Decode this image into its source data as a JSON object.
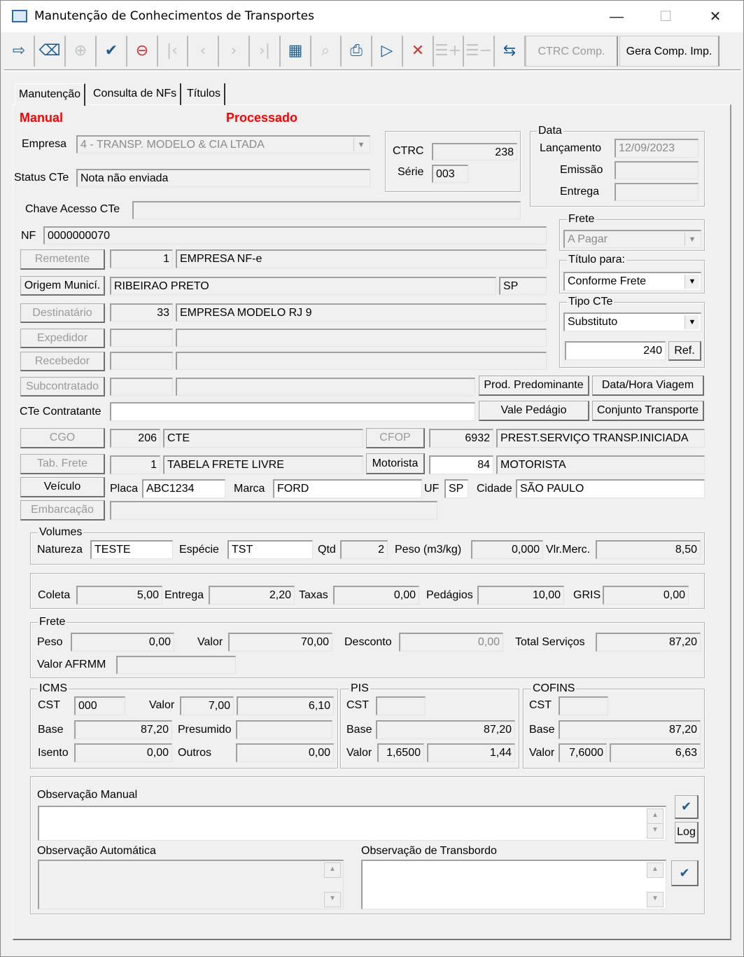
{
  "window": {
    "title": "Manutenção de Conhecimentos de Transportes",
    "minimize": "—",
    "maximize": "☐",
    "close": "✕"
  },
  "toolbar": {
    "icons": [
      {
        "name": "exit-icon",
        "glyph": "⇨",
        "enabled": true
      },
      {
        "name": "eraser-icon",
        "glyph": "⌫",
        "enabled": true
      },
      {
        "name": "folder-add-icon",
        "glyph": "⊕",
        "enabled": false
      },
      {
        "name": "folder-check-icon",
        "glyph": "✔",
        "enabled": true
      },
      {
        "name": "folder-delete-icon",
        "glyph": "⊖",
        "enabled": true
      },
      {
        "name": "first-record-icon",
        "glyph": "|‹",
        "enabled": false
      },
      {
        "name": "previous-record-icon",
        "glyph": "‹",
        "enabled": false
      },
      {
        "name": "next-record-icon",
        "glyph": "›",
        "enabled": false
      },
      {
        "name": "last-record-icon",
        "glyph": "›|",
        "enabled": false
      },
      {
        "name": "grid-icon",
        "glyph": "▦",
        "enabled": true
      },
      {
        "name": "search-icon",
        "glyph": "⌕",
        "enabled": false
      },
      {
        "name": "print-icon",
        "glyph": "⎙",
        "enabled": true
      },
      {
        "name": "play-icon",
        "glyph": "▷",
        "enabled": true
      },
      {
        "name": "cancel-icon",
        "glyph": "✕",
        "enabled": true
      },
      {
        "name": "add-row-icon",
        "glyph": "☰+",
        "enabled": false
      },
      {
        "name": "remove-row-icon",
        "glyph": "☰−",
        "enabled": false
      },
      {
        "name": "transfer-icon",
        "glyph": "⇆",
        "enabled": true
      }
    ],
    "ctrc_comp": "CTRC Comp.",
    "gera_comp_imp": "Gera Comp. Imp."
  },
  "tabs": [
    "Manutenção",
    "Consulta de NFs",
    "Títulos"
  ],
  "status": {
    "manual": "Manual",
    "processado": "Processado"
  },
  "header": {
    "empresa_label": "Empresa",
    "empresa": "4 - TRANSP. MODELO & CIA LTADA",
    "status_label": "Status CTe",
    "status": "Nota não enviada",
    "ctrc_label": "CTRC",
    "ctrc": "238",
    "serie_label": "Série",
    "serie": "003",
    "data_title": "Data",
    "lancamento_label": "Lançamento",
    "lancamento": "12/09/2023",
    "emissao_label": "Emissão",
    "emissao": "",
    "entrega_label": "Entrega",
    "entrega": "",
    "chave_label": "Chave Acesso CTe",
    "chave": "",
    "nf_label": "NF",
    "nf": "0000000070"
  },
  "side": {
    "frete_title": "Frete",
    "frete": "A Pagar",
    "titulo_title": "Título para:",
    "titulo": "Conforme Frete",
    "tipo_title": "Tipo CTe",
    "tipo": "Substituto",
    "ref_value": "240",
    "ref_button": "Ref."
  },
  "parties": {
    "remetente": "Remetente",
    "remetente_cod": "1",
    "remetente_nome": "EMPRESA NF-e",
    "origem": "Origem Municí.",
    "origem_cidade": "RIBEIRAO PRETO",
    "origem_uf": "SP",
    "destinatario": "Destinatário",
    "destinatario_cod": "33",
    "destinatario_nome": "EMPRESA MODELO RJ 9",
    "expedidor": "Expedidor",
    "recebedor": "Recebedor",
    "subcontratado": "Subcontratado",
    "prod_predominante": "Prod. Predominante",
    "data_hora_viagem": "Data/Hora Viagem",
    "cte_contratante_label": "CTe Contratante",
    "cte_contratante": "",
    "vale_pedagio": "Vale Pedágio",
    "conjunto_transporte": "Conjunto Transporte",
    "cgo": "CGO",
    "cgo_cod": "206",
    "cgo_desc": "CTE",
    "cfop": "CFOP",
    "cfop_cod": "6932",
    "cfop_desc": "PREST.SERVIÇO TRANSP.INICIADA",
    "tab_frete": "Tab. Frete",
    "tab_frete_cod": "1",
    "tab_frete_desc": "TABELA FRETE LIVRE",
    "motorista": "Motorista",
    "motorista_cod": "84",
    "motorista_nome": "MOTORISTA",
    "veiculo": "Veículo",
    "placa_label": "Placa",
    "placa": "ABC1234",
    "marca_label": "Marca",
    "marca": "FORD",
    "uf_label": "UF",
    "uf": "SP",
    "cidade_label": "Cidade",
    "cidade": "SÃO PAULO",
    "embarcacao": "Embarcação"
  },
  "volumes": {
    "title": "Volumes",
    "natureza_label": "Natureza",
    "natureza": "TESTE",
    "especie_label": "Espécie",
    "especie": "TST",
    "qtd_label": "Qtd",
    "qtd": "2",
    "peso_label": "Peso (m3/kg)",
    "peso": "0,000",
    "vlr_label": "Vlr.Merc.",
    "vlr": "8,50"
  },
  "taxas": {
    "coleta_label": "Coleta",
    "coleta": "5,00",
    "entrega_label": "Entrega",
    "entrega": "2,20",
    "taxas_label": "Taxas",
    "taxas": "0,00",
    "pedagios_label": "Pedágios",
    "pedagios": "10,00",
    "gris_label": "GRIS",
    "gris": "0,00"
  },
  "frete": {
    "title": "Frete",
    "peso_label": "Peso",
    "peso": "0,00",
    "valor_label": "Valor",
    "valor": "70,00",
    "desconto_label": "Desconto",
    "desconto": "0,00",
    "total_label": "Total Serviços",
    "total": "87,20",
    "afrmm_label": "Valor AFRMM",
    "afrmm": ""
  },
  "icms": {
    "title": "ICMS",
    "cst_label": "CST",
    "cst": "000",
    "valor_label": "Valor",
    "aliquota": "7,00",
    "valor": "6,10",
    "base_label": "Base",
    "base": "87,20",
    "presumido_label": "Presumido",
    "presumido": "",
    "isento_label": "Isento",
    "isento": "0,00",
    "outros_label": "Outros",
    "outros": "0,00"
  },
  "pis": {
    "title": "PIS",
    "cst_label": "CST",
    "cst": "",
    "base_label": "Base",
    "base": "87,20",
    "valor_label": "Valor",
    "aliquota": "1,6500",
    "valor": "1,44"
  },
  "cofins": {
    "title": "COFINS",
    "cst_label": "CST",
    "cst": "",
    "base_label": "Base",
    "base": "87,20",
    "valor_label": "Valor",
    "aliquota": "7,6000",
    "valor": "6,63"
  },
  "obs": {
    "manual_label": "Observação Manual",
    "manual": "",
    "log": "Log",
    "automatica_label": "Observação Automática",
    "automatica": "",
    "transbordo_label": "Observação de Transbordo",
    "transbordo": ""
  }
}
